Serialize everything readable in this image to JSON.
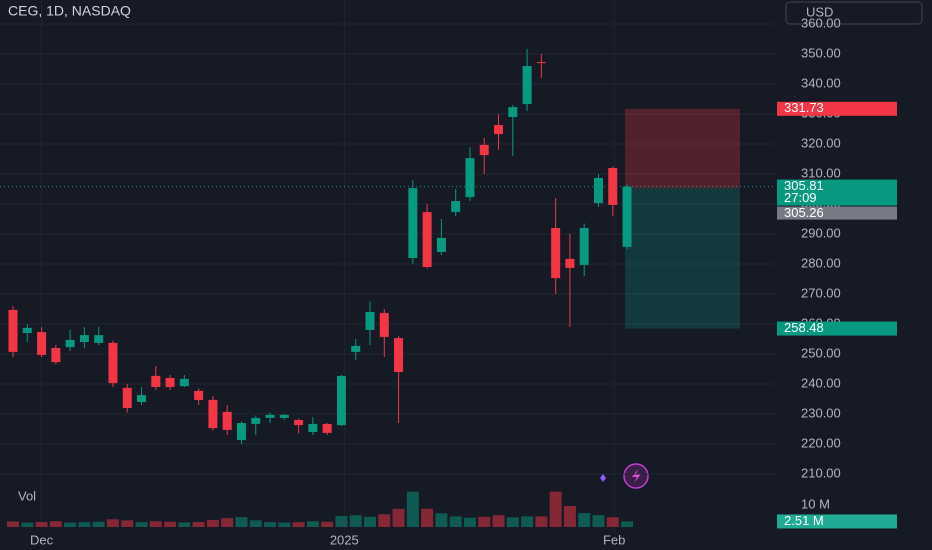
{
  "chart_data": {
    "type": "candlestick",
    "title": "CEG, 1D, NASDAQ",
    "currency": "USD",
    "volume_title": "Vol",
    "up_color": "#089981",
    "down_color": "#f23645",
    "grid": true,
    "categories": [
      null,
      null,
      null,
      null,
      null,
      null,
      null,
      null,
      null,
      null,
      null,
      null,
      null,
      null,
      null,
      null,
      null,
      null,
      null,
      null,
      null,
      null,
      null,
      null,
      null,
      null,
      null,
      null,
      null,
      null,
      null,
      null,
      null,
      null,
      null,
      null,
      null,
      null,
      null,
      null,
      null,
      null,
      null,
      null
    ],
    "xticks": [
      {
        "value": 2,
        "label": "Dec"
      },
      {
        "value": 23.2,
        "label": "2025"
      },
      {
        "value": 42.1,
        "label": "Feb"
      }
    ],
    "open": [
      264.7,
      257,
      257.3,
      252,
      252.3,
      254,
      253.7,
      253.7,
      238.7,
      234,
      242.7,
      242,
      239.3,
      237.7,
      234.7,
      230.7,
      221.3,
      226.7,
      228.7,
      228.7,
      228,
      224,
      226.7,
      226.3,
      250.7,
      258,
      263.7,
      255.3,
      282,
      297.3,
      284,
      297.3,
      302.3,
      319.7,
      326.3,
      329,
      333.3,
      347.3,
      292,
      281.7,
      279.7,
      300.3,
      312,
      285.7
    ],
    "high": [
      266,
      260,
      259,
      253,
      258,
      259,
      259,
      254.5,
      240,
      239,
      246,
      243,
      243,
      238.5,
      236,
      233,
      227.5,
      229.5,
      230.5,
      230,
      228.5,
      229,
      227,
      243,
      255,
      267.5,
      265,
      256,
      308,
      300,
      295,
      305,
      319,
      322,
      330,
      333,
      351.7,
      350,
      302,
      290,
      293.5,
      310,
      312.5,
      306.5
    ],
    "low": [
      249,
      254,
      249,
      246.5,
      251,
      252,
      253,
      239,
      230.5,
      233,
      238,
      238,
      239,
      233,
      224.5,
      223,
      220,
      223,
      227,
      228,
      223.5,
      223,
      223,
      226,
      248,
      253,
      249,
      227,
      280,
      278.5,
      283,
      296,
      301,
      310,
      318,
      316,
      331,
      342,
      270,
      259,
      276,
      299,
      296,
      285
    ],
    "close": [
      250.7,
      258.7,
      249.7,
      247.3,
      254.7,
      256.3,
      256.3,
      240.3,
      232,
      236.3,
      239,
      239,
      241.7,
      234.7,
      225.3,
      224.7,
      227,
      228.7,
      229.7,
      229.7,
      226.3,
      226.7,
      223.7,
      242.7,
      252.7,
      264,
      255.7,
      244,
      305.3,
      279,
      288.7,
      301,
      315.3,
      316.3,
      323.3,
      332.3,
      346,
      347,
      275.3,
      278.7,
      292,
      308.7,
      299.7,
      305.81
    ],
    "volume": [
      2.5,
      2,
      2.3,
      2.6,
      2,
      2.2,
      2.4,
      3.5,
      3,
      2.2,
      2.6,
      2.4,
      2.1,
      2.3,
      3.2,
      4,
      4.5,
      3,
      2.2,
      2,
      2.2,
      2.6,
      2.4,
      5,
      5.3,
      4.6,
      5.8,
      8.2,
      16,
      8.3,
      6.2,
      4.8,
      4.2,
      4.6,
      5.3,
      4.4,
      4.8,
      4.8,
      16,
      9.5,
      6.3,
      5.4,
      4.4,
      2.51
    ],
    "ylim": [
      204.67,
      368
    ],
    "yticks": [
      {
        "value": 360,
        "label": "360.00"
      },
      {
        "value": 350,
        "label": "350.00"
      },
      {
        "value": 340,
        "label": "340.00"
      },
      {
        "value": 330,
        "label": "330.00"
      },
      {
        "value": 320,
        "label": "320.00"
      },
      {
        "value": 310,
        "label": "310.00"
      },
      {
        "value": 300,
        "label": "300.00"
      },
      {
        "value": 290,
        "label": "290.00"
      },
      {
        "value": 280,
        "label": "280.00"
      },
      {
        "value": 270,
        "label": "270.00"
      },
      {
        "value": 260,
        "label": "260.00"
      },
      {
        "value": 250,
        "label": "250.00"
      },
      {
        "value": 240,
        "label": "240.00"
      },
      {
        "value": 230,
        "label": "230.00"
      },
      {
        "value": 220,
        "label": "220.00"
      },
      {
        "value": 210,
        "label": "210.00"
      }
    ],
    "volume_ylim": [
      0,
      24
    ],
    "volume_ticks": [
      {
        "value": 10,
        "label": "10 M"
      }
    ],
    "volume_last_label": "2.51 M",
    "position": {
      "take_profit": 331.73,
      "entry": 305.26,
      "stop_loss": 258.48
    },
    "last_price": 305.81,
    "countdown": "27:09"
  }
}
